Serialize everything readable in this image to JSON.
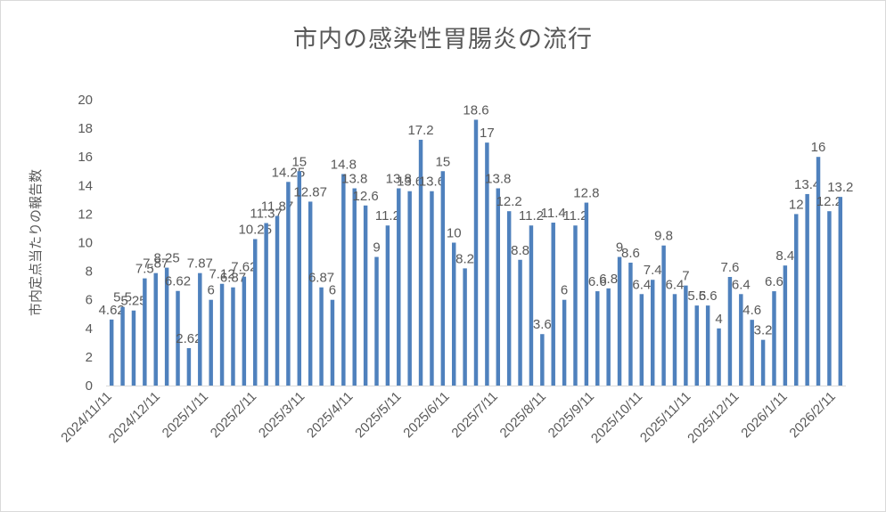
{
  "chart_data": {
    "type": "bar",
    "title": "市内の感染性胃腸炎の流行",
    "ylabel": "市内定点当たりの報告数",
    "xlabel": "",
    "ylim": [
      0,
      20
    ],
    "ytick_step": 2,
    "grid": false,
    "legend": "none",
    "bar_color": "#4f81bd",
    "x_tick_labels": [
      "2024/11/11",
      "2024/12/11",
      "2025/1/11",
      "2025/2/11",
      "2025/3/11",
      "2025/4/11",
      "2025/5/11",
      "2025/6/11",
      "2025/7/11",
      "2025/8/11",
      "2025/9/11",
      "2025/10/11",
      "2025/11/11",
      "2025/12/11",
      "2026/1/11",
      "2026/2/11"
    ],
    "values": [
      4.62,
      5.5,
      5.25,
      7.5,
      7.87,
      8.25,
      6.62,
      2.62,
      7.87,
      6,
      7.12,
      6.87,
      7.62,
      10.25,
      11.37,
      11.87,
      14.25,
      15,
      12.87,
      6.87,
      6,
      14.8,
      13.8,
      12.6,
      9,
      11.2,
      13.8,
      13.6,
      17.2,
      13.6,
      15,
      10,
      8.2,
      18.6,
      17,
      13.8,
      12.2,
      8.8,
      11.2,
      3.6,
      11.4,
      6,
      11.2,
      12.8,
      6.6,
      6.8,
      9,
      8.6,
      6.4,
      7.4,
      9.8,
      6.4,
      7,
      5.6,
      5.6,
      4,
      7.6,
      6.4,
      4.6,
      3.2,
      6.6,
      8.4,
      12,
      13.4,
      16,
      12.2,
      13.2
    ],
    "data_labels": [
      "4.62",
      "5.5",
      "5.25",
      "7.5",
      "7.87",
      "8.25",
      "6.62",
      "2.62",
      "7.87",
      "6",
      "7.12",
      "6.87",
      "7.62",
      "10.25",
      "11.37",
      "11.87",
      "14.25",
      "15",
      "12.87",
      "6.87",
      "6",
      "14.8",
      "13.8",
      "12.6",
      "9",
      "11.2",
      "13.8",
      "13.6",
      "17.2",
      "13.6",
      "15",
      "10",
      "8.2",
      "18.6",
      "17",
      "13.8",
      "12.2",
      "8.8",
      "11.2",
      "3.6",
      "11.4",
      "6",
      "11.2",
      "12.8",
      "6.6",
      "6.8",
      "9",
      "8.6",
      "6.4",
      "7.4",
      "9.8",
      "6.4",
      "7",
      "5.6",
      "5.6",
      "4",
      "7.6",
      "6.4",
      "4.6",
      "3.2",
      "6.6",
      "8.4",
      "12",
      "13.4",
      "16",
      "12.2",
      "13.2"
    ]
  }
}
